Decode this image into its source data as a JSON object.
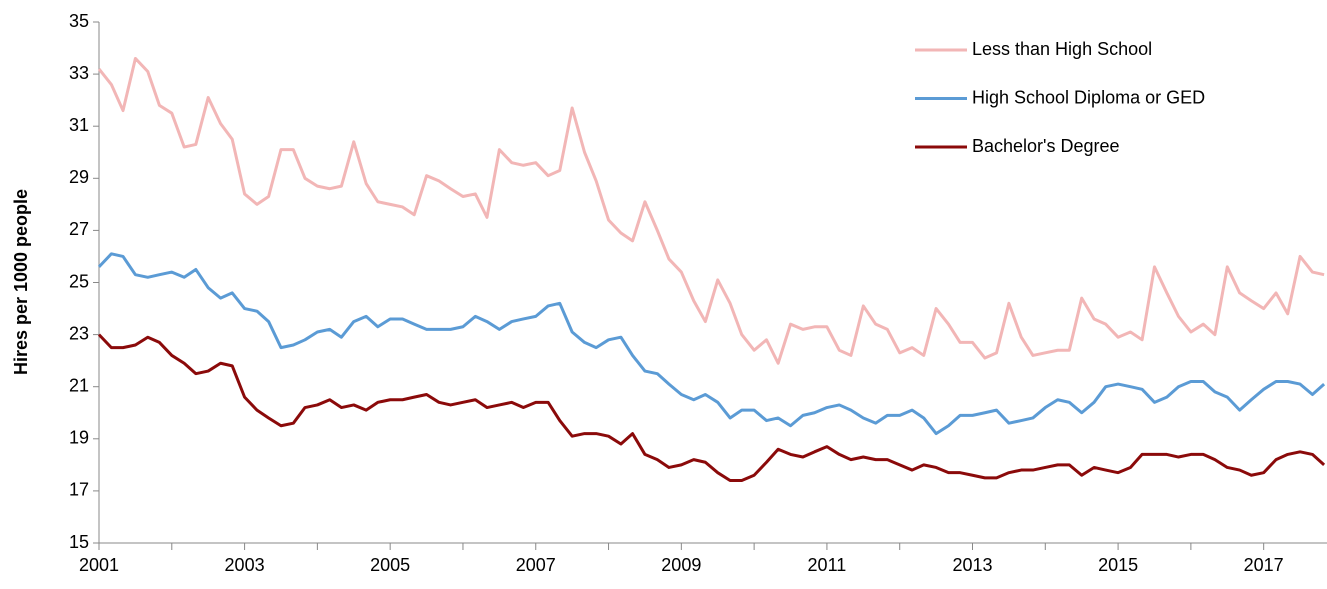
{
  "chart_data": {
    "type": "line",
    "y_label": "Hires per 1000 people",
    "x": [
      2001,
      2001.17,
      2001.33,
      2001.5,
      2001.67,
      2001.83,
      2002,
      2002.17,
      2002.33,
      2002.5,
      2002.67,
      2002.83,
      2003,
      2003.17,
      2003.33,
      2003.5,
      2003.67,
      2003.83,
      2004,
      2004.17,
      2004.33,
      2004.5,
      2004.67,
      2004.83,
      2005,
      2005.17,
      2005.33,
      2005.5,
      2005.67,
      2005.83,
      2006,
      2006.17,
      2006.33,
      2006.5,
      2006.67,
      2006.83,
      2007,
      2007.17,
      2007.33,
      2007.5,
      2007.67,
      2007.83,
      2008,
      2008.17,
      2008.33,
      2008.5,
      2008.67,
      2008.83,
      2009,
      2009.17,
      2009.33,
      2009.5,
      2009.67,
      2009.83,
      2010,
      2010.17,
      2010.33,
      2010.5,
      2010.67,
      2010.83,
      2011,
      2011.17,
      2011.33,
      2011.5,
      2011.67,
      2011.83,
      2012,
      2012.17,
      2012.33,
      2012.5,
      2012.67,
      2012.83,
      2013,
      2013.17,
      2013.33,
      2013.5,
      2013.67,
      2013.83,
      2014,
      2014.17,
      2014.33,
      2014.5,
      2014.67,
      2014.83,
      2015,
      2015.17,
      2015.33,
      2015.5,
      2015.67,
      2015.83,
      2016,
      2016.17,
      2016.33,
      2016.5,
      2016.67,
      2016.83,
      2017,
      2017.17,
      2017.33,
      2017.5,
      2017.67,
      2017.83
    ],
    "series": [
      {
        "name": "Less than High School",
        "color": "#f2b6b6",
        "values": [
          33.2,
          32.6,
          31.6,
          33.6,
          33.1,
          31.8,
          31.5,
          30.2,
          30.3,
          32.1,
          31.1,
          30.5,
          28.4,
          28.0,
          28.3,
          30.1,
          30.1,
          29.0,
          28.7,
          28.6,
          28.7,
          30.4,
          28.8,
          28.1,
          28.0,
          27.9,
          27.6,
          29.1,
          28.9,
          28.6,
          28.3,
          28.4,
          27.5,
          30.1,
          29.6,
          29.5,
          29.6,
          29.1,
          29.3,
          31.7,
          30.0,
          28.9,
          27.4,
          26.9,
          26.6,
          28.1,
          27.0,
          25.9,
          25.4,
          24.3,
          23.5,
          25.1,
          24.2,
          23.0,
          22.4,
          22.8,
          21.9,
          23.4,
          23.2,
          23.3,
          23.3,
          22.4,
          22.2,
          24.1,
          23.4,
          23.2,
          22.3,
          22.5,
          22.2,
          24.0,
          23.4,
          22.7,
          22.7,
          22.1,
          22.3,
          24.2,
          22.9,
          22.2,
          22.3,
          22.4,
          22.4,
          24.4,
          23.6,
          23.4,
          22.9,
          23.1,
          22.8,
          25.6,
          24.6,
          23.7,
          23.1,
          23.4,
          23.0,
          25.6,
          24.6,
          24.3,
          24.0,
          24.6,
          23.8,
          26.0,
          25.4,
          25.3
        ]
      },
      {
        "name": "High School Diploma or GED",
        "color": "#5b9bd5",
        "values": [
          25.6,
          26.1,
          26.0,
          25.3,
          25.2,
          25.3,
          25.4,
          25.2,
          25.5,
          24.8,
          24.4,
          24.6,
          24.0,
          23.9,
          23.5,
          22.5,
          22.6,
          22.8,
          23.1,
          23.2,
          22.9,
          23.5,
          23.7,
          23.3,
          23.6,
          23.6,
          23.4,
          23.2,
          23.2,
          23.2,
          23.3,
          23.7,
          23.5,
          23.2,
          23.5,
          23.6,
          23.7,
          24.1,
          24.2,
          23.1,
          22.7,
          22.5,
          22.8,
          22.9,
          22.2,
          21.6,
          21.5,
          21.1,
          20.7,
          20.5,
          20.7,
          20.4,
          19.8,
          20.1,
          20.1,
          19.7,
          19.8,
          19.5,
          19.9,
          20.0,
          20.2,
          20.3,
          20.1,
          19.8,
          19.6,
          19.9,
          19.9,
          20.1,
          19.8,
          19.2,
          19.5,
          19.9,
          19.9,
          20.0,
          20.1,
          19.6,
          19.7,
          19.8,
          20.2,
          20.5,
          20.4,
          20.0,
          20.4,
          21.0,
          21.1,
          21.0,
          20.9,
          20.4,
          20.6,
          21.0,
          21.2,
          21.2,
          20.8,
          20.6,
          20.1,
          20.5,
          20.9,
          21.2,
          21.2,
          21.1,
          20.7,
          21.1
        ]
      },
      {
        "name": "Bachelor's Degree",
        "color": "#8b0a0a",
        "values": [
          23.0,
          22.5,
          22.5,
          22.6,
          22.9,
          22.7,
          22.2,
          21.9,
          21.5,
          21.6,
          21.9,
          21.8,
          20.6,
          20.1,
          19.8,
          19.5,
          19.6,
          20.2,
          20.3,
          20.5,
          20.2,
          20.3,
          20.1,
          20.4,
          20.5,
          20.5,
          20.6,
          20.7,
          20.4,
          20.3,
          20.4,
          20.5,
          20.2,
          20.3,
          20.4,
          20.2,
          20.4,
          20.4,
          19.7,
          19.1,
          19.2,
          19.2,
          19.1,
          18.8,
          19.2,
          18.4,
          18.2,
          17.9,
          18.0,
          18.2,
          18.1,
          17.7,
          17.4,
          17.4,
          17.6,
          18.1,
          18.6,
          18.4,
          18.3,
          18.5,
          18.7,
          18.4,
          18.2,
          18.3,
          18.2,
          18.2,
          18.0,
          17.8,
          18.0,
          17.9,
          17.7,
          17.7,
          17.6,
          17.5,
          17.5,
          17.7,
          17.8,
          17.8,
          17.9,
          18.0,
          18.0,
          17.6,
          17.9,
          17.8,
          17.7,
          17.9,
          18.4,
          18.4,
          18.4,
          18.3,
          18.4,
          18.4,
          18.2,
          17.9,
          17.8,
          17.6,
          17.7,
          18.2,
          18.4,
          18.5,
          18.4,
          18.0
        ]
      }
    ],
    "xlim": [
      2001,
      2017.87
    ],
    "xticks": [
      2001,
      2003,
      2005,
      2007,
      2009,
      2011,
      2013,
      2015,
      2017
    ],
    "xminor_ticks": [
      2002,
      2004,
      2006,
      2008,
      2010,
      2012,
      2014,
      2016
    ],
    "ylim": [
      15,
      35
    ],
    "yticks": [
      15,
      17,
      19,
      21,
      23,
      25,
      27,
      29,
      31,
      33,
      35
    ],
    "grid": false,
    "legend": "upper right"
  }
}
